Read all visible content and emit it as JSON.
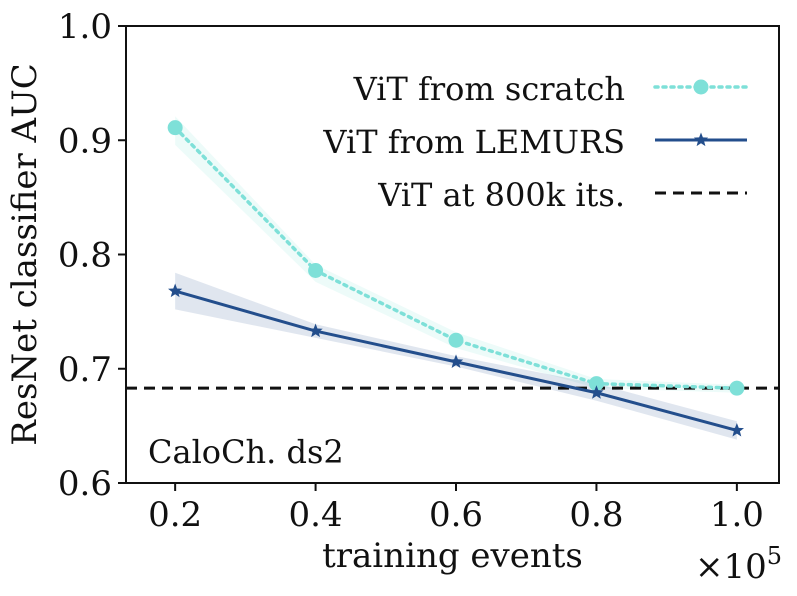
{
  "chart_data": {
    "type": "line",
    "xlabel": "training events",
    "ylabel": "ResNet classifier AUC",
    "x_multiplier_label": "×10",
    "x_multiplier_exp": "5",
    "annotation": "CaloCh. ds2",
    "legend_position": "top-right",
    "xlim": [
      0.13,
      1.06
    ],
    "ylim": [
      0.6,
      1.0
    ],
    "x_ticks": [
      0.2,
      0.4,
      0.6,
      0.8,
      1.0
    ],
    "x_tick_labels": [
      "0.2",
      "0.4",
      "0.6",
      "0.8",
      "1.0"
    ],
    "y_ticks": [
      0.6,
      0.7,
      0.8,
      0.9,
      1.0
    ],
    "y_tick_labels": [
      "0.6",
      "0.7",
      "0.8",
      "0.9",
      "1.0"
    ],
    "x": [
      0.2,
      0.4,
      0.6,
      0.8,
      1.0
    ],
    "series": [
      {
        "name": "ViT from scratch",
        "style": "dotted",
        "marker": "circle",
        "color": "#7ee0d8",
        "values": [
          0.911,
          0.786,
          0.725,
          0.687,
          0.683
        ],
        "band_lower": [
          0.896,
          0.776,
          0.718,
          0.683,
          0.679
        ],
        "band_upper": [
          0.921,
          0.791,
          0.732,
          0.691,
          0.686
        ]
      },
      {
        "name": "ViT from LEMURS",
        "style": "solid",
        "marker": "star",
        "color": "#234e8c",
        "values": [
          0.768,
          0.733,
          0.706,
          0.679,
          0.646
        ],
        "band_lower": [
          0.752,
          0.727,
          0.702,
          0.672,
          0.638
        ],
        "band_upper": [
          0.784,
          0.739,
          0.711,
          0.687,
          0.654
        ]
      }
    ],
    "reference_line": {
      "name": "ViT at 800k its.",
      "style": "dashed",
      "color": "#111111",
      "y": 0.683
    }
  }
}
